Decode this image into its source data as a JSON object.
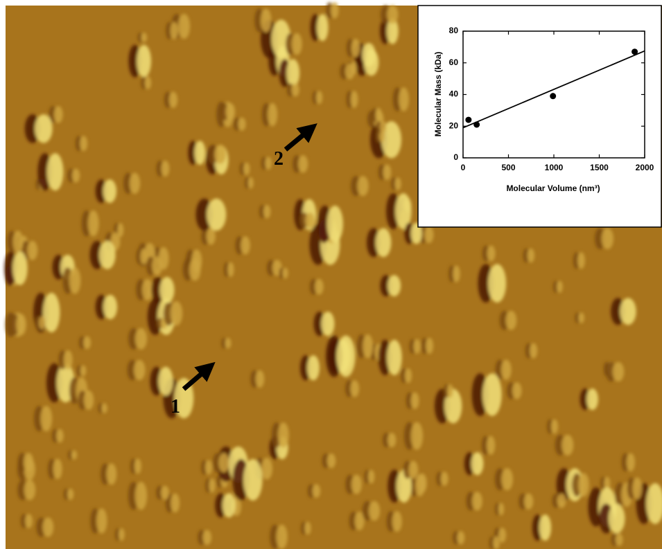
{
  "image_labels": [
    "1",
    "2"
  ],
  "chart_data": {
    "type": "scatter",
    "x_label": "Molecular Volume (nm³)",
    "y_label": "Molecular Mass (kDa)",
    "x": [
      60,
      150,
      990,
      1890
    ],
    "values": [
      24,
      21,
      39,
      67
    ],
    "color": "#000000",
    "fit_line": {
      "x": [
        0,
        2000
      ],
      "values": [
        19,
        67.5
      ]
    },
    "xlim": [
      0,
      2000
    ],
    "ylim": [
      0,
      80
    ],
    "xticks": [
      0,
      500,
      1000,
      1500,
      2000
    ],
    "yticks": [
      0,
      20,
      40,
      60,
      80
    ]
  }
}
